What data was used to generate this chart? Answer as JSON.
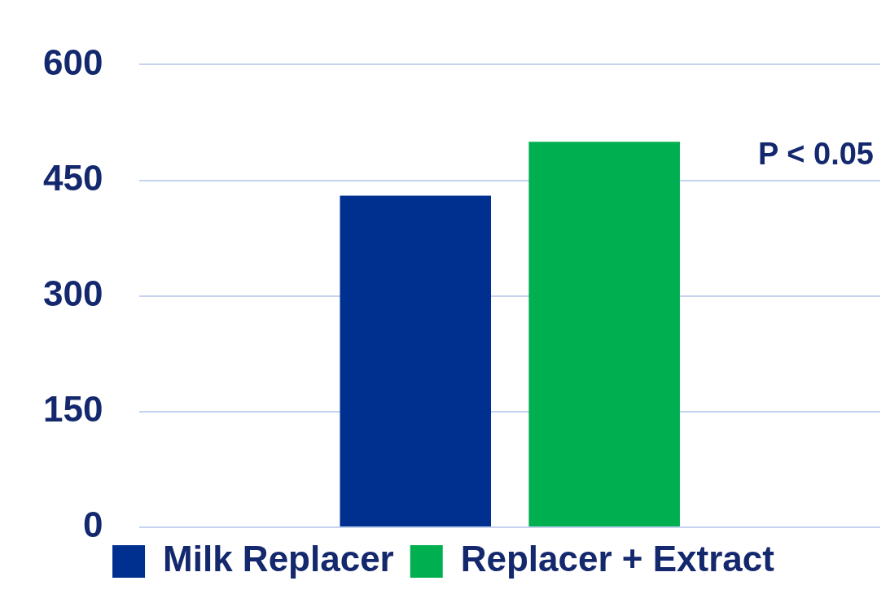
{
  "chart_data": {
    "type": "bar",
    "categories": [
      null
    ],
    "series": [
      {
        "name": "Milk Replacer",
        "color": "#00308f",
        "values": [
          430
        ]
      },
      {
        "name": "Replacer + Extract",
        "color": "#00b050",
        "values": [
          500
        ]
      }
    ],
    "ylim": [
      0,
      600
    ],
    "yticks": [
      0,
      150,
      300,
      450,
      600
    ],
    "grid": "y",
    "legend": "bottom",
    "annotations": [
      "P < 0.05"
    ]
  }
}
